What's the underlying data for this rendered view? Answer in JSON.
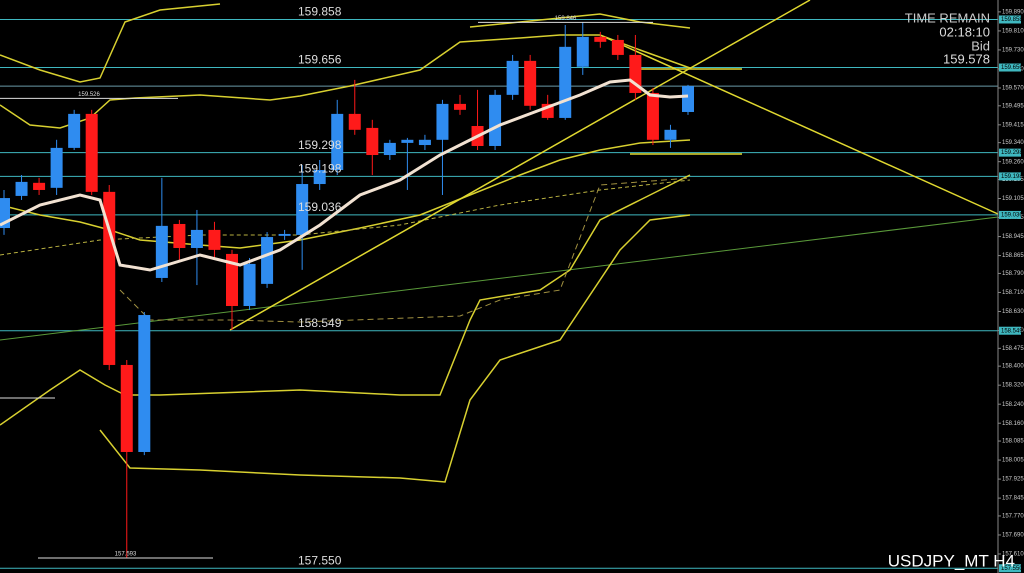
{
  "chart_data": {
    "type": "candlestick",
    "title": "USDJPY_MT H4",
    "up_color": "#2f8cf0",
    "down_color": "#ff1a1a",
    "level_color": "#3fb8c0",
    "open": [
      158.981,
      159.116,
      159.171,
      159.15,
      159.318,
      159.461,
      159.133,
      158.405,
      158.039,
      158.771,
      158.998,
      158.897,
      158.973,
      158.872,
      158.653,
      158.746,
      158.948,
      158.952,
      159.166,
      159.225,
      159.461,
      159.402,
      159.288,
      159.339,
      159.33,
      159.352,
      159.503,
      159.41,
      159.326,
      159.541,
      159.684,
      159.503,
      159.444,
      159.659,
      159.785,
      159.772,
      159.709,
      159.549,
      159.352,
      159.469
    ],
    "high": [
      159.141,
      159.204,
      159.192,
      159.352,
      159.478,
      159.478,
      159.162,
      158.426,
      158.628,
      159.192,
      159.015,
      159.057,
      159.007,
      158.889,
      158.855,
      158.964,
      158.973,
      159.246,
      159.267,
      159.52,
      159.604,
      159.436,
      159.352,
      159.36,
      159.373,
      159.52,
      159.541,
      159.562,
      159.562,
      159.709,
      159.709,
      159.541,
      159.835,
      159.846,
      159.806,
      159.793,
      159.793,
      159.57,
      159.415,
      159.583
    ],
    "low": [
      158.952,
      159.099,
      159.12,
      159.12,
      159.309,
      159.12,
      158.384,
      157.593,
      158.026,
      158.754,
      158.847,
      158.741,
      158.847,
      158.552,
      158.636,
      158.729,
      158.931,
      158.805,
      159.141,
      159.204,
      159.373,
      159.204,
      159.267,
      159.141,
      159.309,
      159.12,
      159.457,
      159.309,
      159.309,
      159.52,
      159.478,
      159.436,
      159.436,
      159.625,
      159.739,
      159.688,
      159.52,
      159.33,
      159.318,
      159.457
    ],
    "close": [
      159.107,
      159.175,
      159.141,
      159.318,
      159.461,
      159.133,
      158.405,
      158.039,
      158.615,
      158.99,
      158.897,
      158.973,
      158.889,
      158.653,
      158.83,
      158.943,
      158.956,
      159.166,
      159.225,
      159.461,
      159.394,
      159.288,
      159.339,
      159.352,
      159.352,
      159.503,
      159.478,
      159.326,
      159.541,
      159.684,
      159.495,
      159.444,
      159.743,
      159.785,
      159.764,
      159.709,
      159.549,
      159.352,
      159.394,
      159.578
    ],
    "ylim": [
      157.53,
      159.94
    ],
    "yticks": [
      {
        "value": 159.89,
        "label": "159.890"
      },
      {
        "value": 159.81,
        "label": "159.810"
      },
      {
        "value": 159.73,
        "label": "159.730"
      },
      {
        "value": 159.65,
        "label": "159.650"
      },
      {
        "value": 159.57,
        "label": "159.570"
      },
      159.495,
      159.415,
      {
        "value": 159.34,
        "label": "159.340"
      },
      {
        "value": 159.26,
        "label": "159.260"
      },
      159.185,
      159.105,
      159.025,
      158.945,
      158.865,
      {
        "value": 158.79,
        "label": "158.790"
      },
      {
        "value": 158.71,
        "label": "158.710"
      },
      {
        "value": 158.63,
        "label": "158.630"
      },
      {
        "value": 158.55,
        "label": "158.550"
      },
      158.475,
      {
        "value": 158.4,
        "label": "158.400"
      },
      {
        "value": 158.32,
        "label": "158.320"
      },
      {
        "value": 158.24,
        "label": "158.240"
      },
      {
        "value": 158.16,
        "label": "158.160"
      },
      158.085,
      158.005,
      157.925,
      157.845,
      {
        "value": 157.77,
        "label": "157.770"
      },
      {
        "value": 157.69,
        "label": "157.690"
      },
      {
        "value": 157.61,
        "label": "157.610"
      }
    ],
    "levels": [
      159.858,
      159.656,
      159.298,
      159.198,
      159.036,
      158.549,
      {
        "value": 157.55,
        "label": "157.550"
      }
    ],
    "markers": [
      159.526,
      157.593,
      159.846
    ],
    "info": {
      "time_label": "TIME REMAIN",
      "time": "02:18:10",
      "bid_label": "Bid",
      "bid": 159.578
    }
  }
}
